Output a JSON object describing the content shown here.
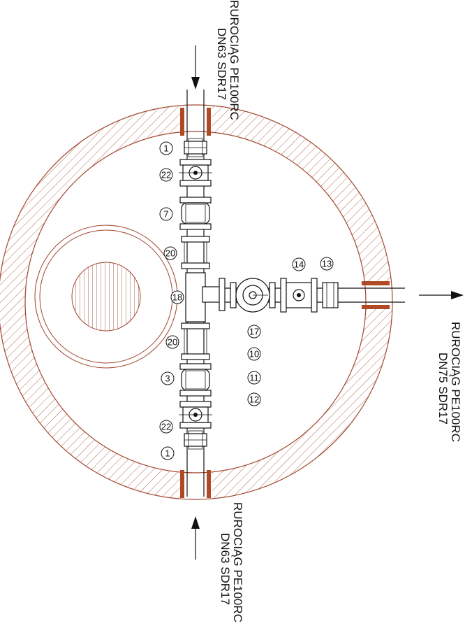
{
  "inlet_top": {
    "line1": "RUROCIĄG PE100RC",
    "line2": "DN63 SDR17"
  },
  "inlet_bottom": {
    "line1": "RUROCIĄG PE100RC",
    "line2": "DN63 SDR17"
  },
  "outlet_right": {
    "line1": "RUROCIĄG PE100RC",
    "line2": "DN75 SDR17"
  },
  "callouts": {
    "c1_top": "1",
    "c22_top": "22",
    "c7": "7",
    "c20_top": "20",
    "c18": "18",
    "c20_bot": "20",
    "c3": "3",
    "c22_bot": "22",
    "c1_bot": "1",
    "c14": "14",
    "c13": "13",
    "c17": "17",
    "c10": "10",
    "c11": "11",
    "c12": "12"
  },
  "colors": {
    "wall": "#a0462d",
    "line": "#111111",
    "background": "#ffffff"
  }
}
